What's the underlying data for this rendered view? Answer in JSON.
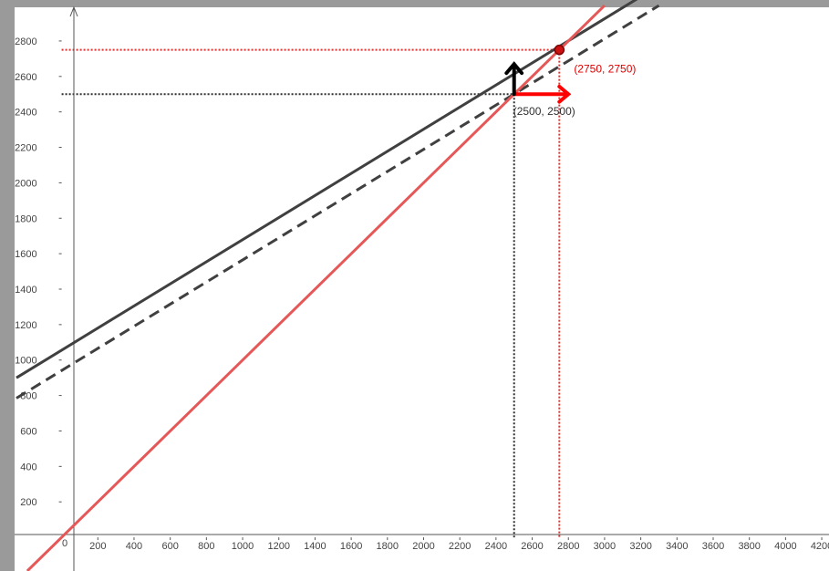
{
  "chart_data": {
    "type": "line",
    "title": "",
    "xlabel": "",
    "ylabel": "",
    "xlim": [
      -260,
      4240
    ],
    "ylim": [
      -190,
      2990
    ],
    "grid": false,
    "x_ticks": [
      200,
      400,
      600,
      800,
      1000,
      1200,
      1400,
      1600,
      1800,
      2000,
      2200,
      2400,
      2600,
      2800,
      3000,
      3200,
      3400,
      3600,
      3800,
      4000,
      4200
    ],
    "y_ticks": [
      200,
      400,
      600,
      800,
      1000,
      1200,
      1400,
      1600,
      1800,
      2000,
      2200,
      2400,
      2600,
      2800
    ],
    "origin_label": "0",
    "series": [
      {
        "style": "solid",
        "color": "#404040",
        "x": [
          -250,
          3200
        ],
        "y": [
          900,
          3050
        ]
      },
      {
        "style": "dashed",
        "color": "#404040",
        "x": [
          -250,
          3300
        ],
        "y": [
          785,
          3000
        ]
      },
      {
        "style": "solid",
        "color": "#e65757",
        "x": [
          -190,
          3000
        ],
        "y": [
          -190,
          3000
        ]
      }
    ],
    "points": [
      {
        "x": 2750,
        "y": 2750,
        "label": "(2750, 2750)",
        "color": "#e00000",
        "marker": true
      },
      {
        "x": 2500,
        "y": 2500,
        "label": "(2500, 2500)",
        "color": "#303030",
        "marker": false
      }
    ],
    "guides": [
      {
        "value": 2750,
        "color": "#e03030"
      },
      {
        "value": 2500,
        "color": "#303030"
      }
    ],
    "arrows": [
      {
        "from": [
          2500,
          2500
        ],
        "to": [
          2800,
          2500
        ],
        "color": "#ff0000"
      },
      {
        "from": [
          2500,
          2500
        ],
        "to": [
          2500,
          2670
        ],
        "color": "#000000"
      }
    ],
    "colors": {
      "frame": "#9a9a9a",
      "axis": "#555555",
      "tick_text": "#444444"
    }
  }
}
